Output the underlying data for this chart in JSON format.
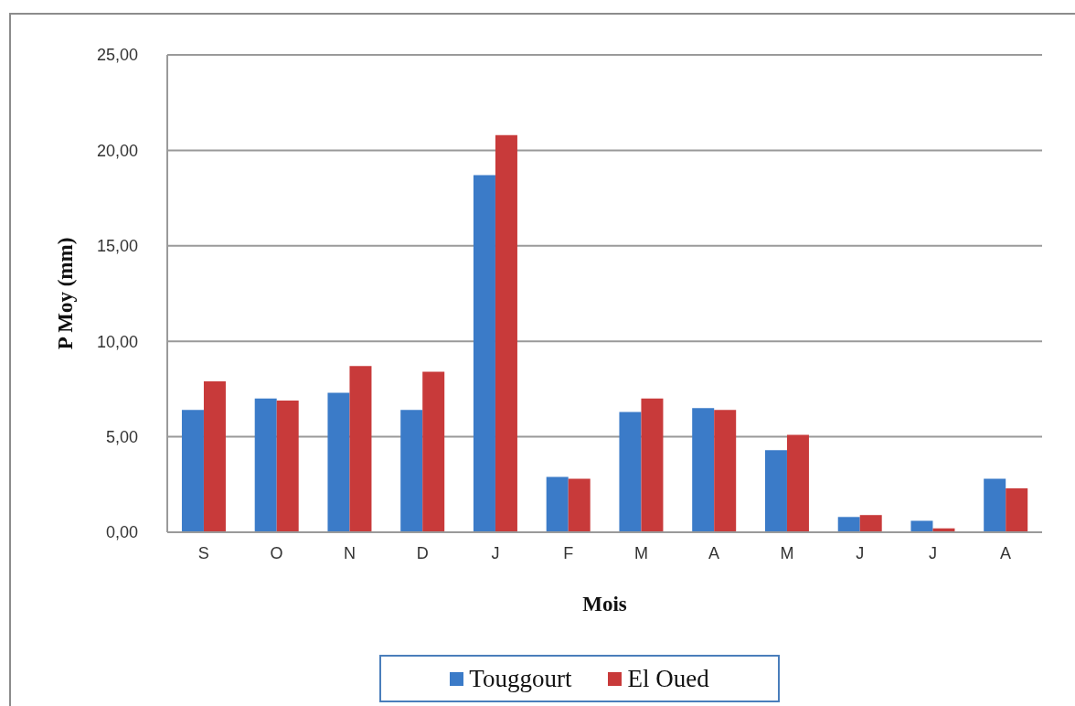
{
  "chart_data": {
    "type": "bar",
    "xlabel": "Mois",
    "ylabel": "P Moy (mm)",
    "categories": [
      "S",
      "O",
      "N",
      "D",
      "J",
      "F",
      "M",
      "A",
      "M",
      "J",
      "J",
      "A"
    ],
    "series": [
      {
        "name": "Touggourt",
        "color": "#3b7bc8",
        "values": [
          6.4,
          7.0,
          7.3,
          6.4,
          18.7,
          2.9,
          6.3,
          6.5,
          4.3,
          0.8,
          0.6,
          2.8
        ]
      },
      {
        "name": "El Oued",
        "color": "#c83a3a",
        "values": [
          7.9,
          6.9,
          8.7,
          8.4,
          20.8,
          2.8,
          7.0,
          6.4,
          5.1,
          0.9,
          0.2,
          2.3
        ]
      }
    ],
    "ylim": [
      0,
      25
    ],
    "yticks": [
      {
        "value": 0,
        "label": "0,00"
      },
      {
        "value": 5,
        "label": "5,00"
      },
      {
        "value": 10,
        "label": "10,00"
      },
      {
        "value": 15,
        "label": "15,00"
      },
      {
        "value": 20,
        "label": "20,00"
      },
      {
        "value": 25,
        "label": "25,00"
      }
    ],
    "grid": "y",
    "legend": "bottom"
  }
}
